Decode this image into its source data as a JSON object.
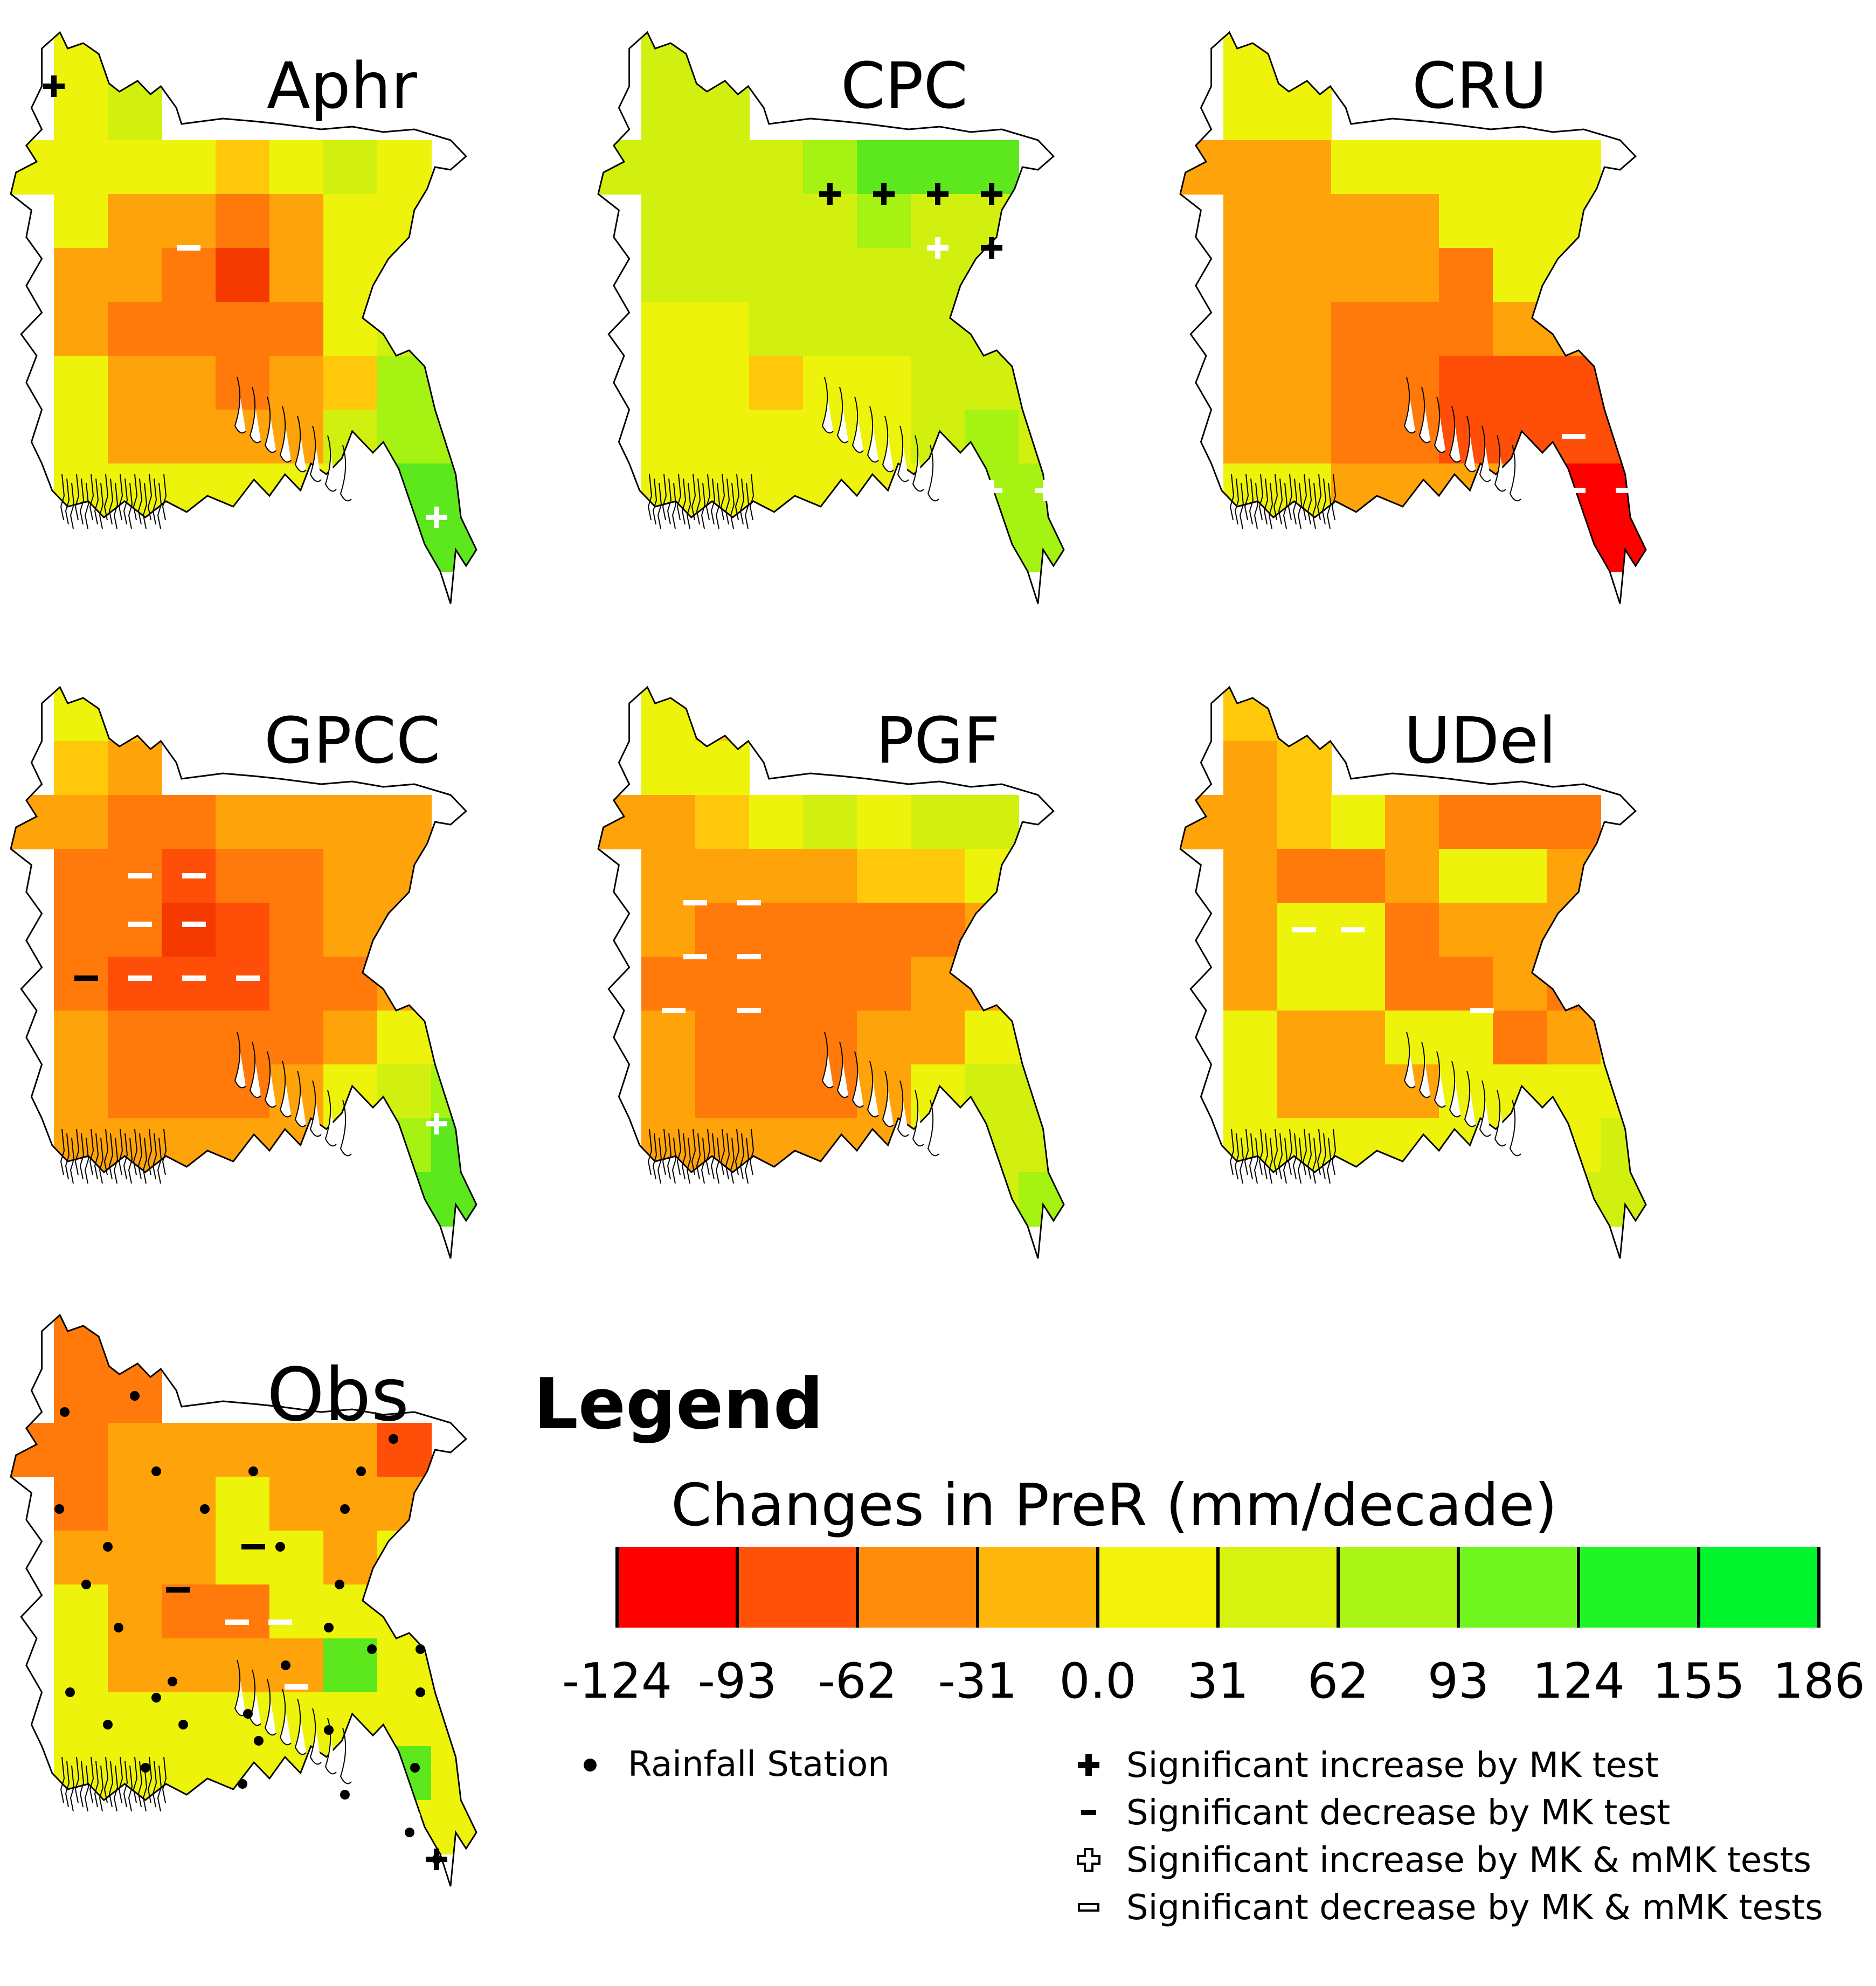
{
  "panels": [
    {
      "title": "Aphr",
      "grid": [
        [
          null,
          "y",
          "yg",
          null,
          null,
          null,
          null,
          null,
          null
        ],
        [
          null,
          "y",
          "yg",
          null,
          null,
          null,
          null,
          null,
          null
        ],
        [
          "y",
          "y",
          "y",
          "y",
          "yo",
          "y",
          "yg",
          "y",
          null
        ],
        [
          null,
          "y",
          "o",
          "o",
          "or",
          "o",
          "y",
          "y",
          null
        ],
        [
          null,
          "o",
          "o",
          "or",
          "r3",
          "o",
          "y",
          "y",
          null
        ],
        [
          null,
          "o",
          "or",
          "or",
          "or",
          "or",
          "y",
          "yg",
          "y"
        ],
        [
          null,
          "y",
          "o",
          "o",
          "or",
          "o",
          "yo",
          "lg",
          "lg"
        ],
        [
          null,
          "y",
          "o",
          "o",
          "o",
          "o",
          "yg",
          "lg",
          "lg"
        ],
        [
          null,
          "y",
          "y",
          "y",
          "y",
          "y",
          "y",
          "g",
          "g"
        ],
        [
          null,
          null,
          null,
          null,
          null,
          null,
          null,
          "g",
          "g"
        ]
      ],
      "markers": [
        [
          "+k",
          1,
          1
        ],
        [
          "-w",
          3.5,
          4
        ],
        [
          "+w",
          7.2,
          9
        ],
        [
          "+w",
          8.1,
          9
        ]
      ]
    },
    {
      "title": "CPC",
      "grid": [
        [
          null,
          "yg",
          "yg",
          null,
          null,
          null,
          null,
          null,
          null
        ],
        [
          null,
          "yg",
          "yg",
          null,
          null,
          null,
          null,
          null,
          null
        ],
        [
          "yg",
          "yg",
          "yg",
          "yg",
          "lg",
          "g",
          "g",
          "g",
          null
        ],
        [
          null,
          "yg",
          "yg",
          "yg",
          "yg",
          "lg",
          "yg",
          "yg",
          null
        ],
        [
          null,
          "yg",
          "yg",
          "yg",
          "yg",
          "yg",
          "yg",
          "yg",
          null
        ],
        [
          null,
          "y",
          "y",
          "yg",
          "yg",
          "yg",
          "yg",
          "yg",
          "yg"
        ],
        [
          null,
          "y",
          "y",
          "yo",
          "y",
          "y",
          "yg",
          "yg",
          "yg"
        ],
        [
          null,
          "y",
          "y",
          "y",
          "y",
          "y",
          "yg",
          "lg",
          "yg"
        ],
        [
          null,
          "y",
          "y",
          "y",
          "y",
          "y",
          "y",
          "lg",
          "lg"
        ],
        [
          null,
          null,
          null,
          null,
          null,
          null,
          null,
          "lg",
          "lg"
        ]
      ],
      "markers": [
        [
          "+k",
          4.5,
          3
        ],
        [
          "+k",
          5.5,
          3
        ],
        [
          "+k",
          6.5,
          3
        ],
        [
          "+k",
          7.5,
          3
        ],
        [
          "+w",
          6.5,
          4
        ],
        [
          "+k",
          7.5,
          4
        ],
        [
          "+w",
          7.5,
          8.5
        ],
        [
          "+w",
          8.5,
          8.5
        ]
      ]
    },
    {
      "title": "CRU",
      "grid": [
        [
          null,
          "y",
          "y",
          null,
          null,
          null,
          null,
          null,
          null
        ],
        [
          null,
          "y",
          "y",
          null,
          null,
          null,
          null,
          null,
          null
        ],
        [
          "o",
          "o",
          "o",
          "y",
          "y",
          "y",
          "y",
          "y",
          null
        ],
        [
          null,
          "o",
          "o",
          "o",
          "o",
          "y",
          "y",
          "y",
          null
        ],
        [
          null,
          "o",
          "o",
          "o",
          "o",
          "or",
          "y",
          "y",
          null
        ],
        [
          null,
          "o",
          "o",
          "or",
          "or",
          "or",
          "o",
          "o",
          "or"
        ],
        [
          null,
          "o",
          "o",
          "or",
          "or",
          "rr",
          "rr",
          "rr",
          "rr"
        ],
        [
          null,
          "o",
          "o",
          "or",
          "or",
          "rr",
          "rr",
          "rr",
          "rr"
        ],
        [
          null,
          "y",
          "y",
          "o",
          "o",
          "o",
          "o",
          "r",
          "r"
        ],
        [
          null,
          null,
          null,
          null,
          null,
          null,
          null,
          "r",
          "r"
        ]
      ],
      "markers": [
        [
          "-w",
          7.5,
          7.5
        ],
        [
          "-w",
          8.5,
          7.5
        ],
        [
          "-w",
          7.5,
          8.5
        ],
        [
          "-w",
          8.5,
          8.5
        ]
      ]
    },
    {
      "title": "GPCC",
      "grid": [
        [
          null,
          "y",
          "yo",
          null,
          null,
          null,
          null,
          null,
          null
        ],
        [
          null,
          "yo",
          "o",
          null,
          null,
          null,
          null,
          null,
          null
        ],
        [
          "o",
          "o",
          "or",
          "or",
          "o",
          "o",
          "o",
          "o",
          null
        ],
        [
          null,
          "or",
          "or",
          "rr",
          "or",
          "or",
          "o",
          "o",
          null
        ],
        [
          null,
          "or",
          "or",
          "r3",
          "rr",
          "or",
          "o",
          "o",
          null
        ],
        [
          null,
          "or",
          "rr",
          "rr",
          "rr",
          "or",
          "or",
          "o",
          "y"
        ],
        [
          null,
          "o",
          "or",
          "or",
          "or",
          "or",
          "o",
          "y",
          "y"
        ],
        [
          null,
          "o",
          "or",
          "or",
          "or",
          "o",
          "y",
          "yg",
          "lg"
        ],
        [
          null,
          "o",
          "o",
          "o",
          "o",
          "o",
          "y",
          "lg",
          "g"
        ],
        [
          null,
          null,
          null,
          null,
          null,
          null,
          null,
          "g",
          "g"
        ]
      ],
      "markers": [
        [
          "-w",
          2.6,
          3.5
        ],
        [
          "-w",
          3.6,
          3.5
        ],
        [
          "-w",
          2.6,
          4.4
        ],
        [
          "-w",
          3.6,
          4.4
        ],
        [
          "-k",
          1.6,
          5.4
        ],
        [
          "-w",
          2.6,
          5.4
        ],
        [
          "-w",
          3.6,
          5.4
        ],
        [
          "-w",
          4.6,
          5.4
        ],
        [
          "+w",
          8.1,
          8.1
        ]
      ]
    },
    {
      "title": "PGF",
      "grid": [
        [
          null,
          "y",
          "yo",
          null,
          null,
          null,
          null,
          null,
          null
        ],
        [
          null,
          "y",
          "y",
          null,
          null,
          null,
          null,
          null,
          null
        ],
        [
          "o",
          "o",
          "yo",
          "y",
          "yg",
          "y",
          "yg",
          "yg",
          null
        ],
        [
          null,
          "o",
          "o",
          "o",
          "o",
          "yo",
          "yo",
          "y",
          null
        ],
        [
          null,
          "o",
          "or",
          "or",
          "or",
          "or",
          "or",
          "o",
          null
        ],
        [
          null,
          "or",
          "or",
          "or",
          "or",
          "or",
          "o",
          "o",
          "y"
        ],
        [
          null,
          "o",
          "or",
          "or",
          "or",
          "o",
          "o",
          "y",
          "y"
        ],
        [
          null,
          "o",
          "or",
          "or",
          "or",
          "o",
          "y",
          "yg",
          "yg"
        ],
        [
          null,
          "o",
          "o",
          "o",
          "o",
          "o",
          "y",
          "yg",
          "yg"
        ],
        [
          null,
          null,
          null,
          null,
          null,
          null,
          null,
          "yg",
          "lg"
        ]
      ],
      "markers": [
        [
          "-w",
          2,
          4
        ],
        [
          "-w",
          3,
          4
        ],
        [
          "-w",
          2,
          5
        ],
        [
          "-w",
          3,
          5
        ],
        [
          "-w",
          1.6,
          6
        ],
        [
          "-w",
          3,
          6
        ]
      ]
    },
    {
      "title": "UDel",
      "grid": [
        [
          null,
          "yo",
          "yo",
          null,
          null,
          null,
          null,
          null,
          null
        ],
        [
          null,
          "o",
          "yo",
          null,
          null,
          null,
          null,
          null,
          null
        ],
        [
          "o",
          "o",
          "yo",
          "y",
          "o",
          "or",
          "or",
          "or",
          null
        ],
        [
          null,
          "o",
          "or",
          "or",
          "o",
          "y",
          "y",
          "o",
          null
        ],
        [
          null,
          "o",
          "y",
          "y",
          "or",
          "o",
          "o",
          "o",
          null
        ],
        [
          null,
          "o",
          "y",
          "y",
          "or",
          "or",
          "o",
          "or",
          "y"
        ],
        [
          null,
          "y",
          "o",
          "o",
          "y",
          "y",
          "or",
          "o",
          "y"
        ],
        [
          null,
          "y",
          "o",
          "o",
          "o",
          "y",
          "y",
          "y",
          "y"
        ],
        [
          null,
          "y",
          "y",
          "y",
          "y",
          "y",
          "y",
          "y",
          "yg"
        ],
        [
          null,
          null,
          null,
          null,
          null,
          null,
          null,
          "yg",
          "yg"
        ]
      ],
      "markers": [
        [
          "-w",
          2.5,
          4.5
        ],
        [
          "-w",
          3.4,
          4.5
        ],
        [
          "-w",
          5.8,
          6
        ]
      ]
    },
    {
      "title": "Obs",
      "grid": [
        [
          null,
          "or",
          "or",
          null,
          null,
          null,
          null,
          null,
          null
        ],
        [
          null,
          "or",
          "or",
          null,
          null,
          null,
          null,
          null,
          null
        ],
        [
          "or",
          "or",
          "o",
          "o",
          "o",
          "o",
          "o",
          "rr",
          null
        ],
        [
          null,
          "or",
          "o",
          "o",
          "y",
          "o",
          "o",
          "o",
          null
        ],
        [
          null,
          "o",
          "o",
          "o",
          "y",
          "y",
          "o",
          "y",
          null
        ],
        [
          null,
          "y",
          "o",
          "or",
          "or",
          "y",
          "y",
          "y",
          "y"
        ],
        [
          null,
          "y",
          "o",
          "o",
          "o",
          "o",
          "g",
          "y",
          "y"
        ],
        [
          null,
          "y",
          "y",
          "y",
          "y",
          "y",
          "y",
          "y",
          "y"
        ],
        [
          null,
          "y",
          "y",
          "y",
          "y",
          "y",
          "y",
          "g",
          "y"
        ],
        [
          null,
          null,
          null,
          null,
          null,
          null,
          null,
          "y",
          "y"
        ]
      ],
      "markers": [
        [
          "-k",
          4.7,
          4.3
        ],
        [
          "-k",
          3.3,
          5.1
        ],
        [
          "-w",
          4.4,
          5.7
        ],
        [
          "-w",
          5.2,
          5.7
        ],
        [
          "-w",
          5.5,
          6.9
        ],
        [
          "+w",
          7.6,
          9.3
        ],
        [
          "+k",
          8.1,
          10.1
        ]
      ],
      "stations": [
        [
          1.2,
          1.8
        ],
        [
          2.5,
          1.5
        ],
        [
          2.9,
          2.9
        ],
        [
          4.7,
          2.9
        ],
        [
          6.7,
          2.9
        ],
        [
          7.3,
          2.3
        ],
        [
          1.1,
          3.6
        ],
        [
          3.8,
          3.6
        ],
        [
          6.4,
          3.6
        ],
        [
          2,
          4.3
        ],
        [
          5.2,
          4.3
        ],
        [
          1.6,
          5
        ],
        [
          6.3,
          5
        ],
        [
          5.3,
          6.5
        ],
        [
          2.2,
          5.8
        ],
        [
          6.1,
          5.8
        ],
        [
          3.2,
          6.8
        ],
        [
          6.9,
          6.2
        ],
        [
          7.8,
          6.2
        ],
        [
          7.8,
          7
        ],
        [
          1.3,
          7
        ],
        [
          2.9,
          7.1
        ],
        [
          4.6,
          7.4
        ],
        [
          6.1,
          7.7
        ],
        [
          2,
          7.6
        ],
        [
          3.4,
          7.6
        ],
        [
          4.8,
          7.9
        ],
        [
          2.7,
          8.4
        ],
        [
          7.7,
          8.4
        ],
        [
          4.5,
          8.7
        ],
        [
          6.4,
          8.9
        ],
        [
          7.6,
          9.6
        ],
        [
          8.1,
          10.1
        ]
      ]
    }
  ],
  "legend": {
    "title": "Legend",
    "scale_title": "Changes in PreR (mm/decade)",
    "ticks": [
      "-124",
      "-93",
      "-62",
      "-31",
      "0.0",
      "31",
      "62",
      "93",
      "124",
      "155",
      "186"
    ],
    "colors": [
      "#ff0000",
      "#ff5208",
      "#ff8c0a",
      "#ffb60b",
      "#f3f20b",
      "#d6f30f",
      "#a9f515",
      "#6ef51e",
      "#1ff526",
      "#00f52c"
    ],
    "station_label": "Rainfall Station",
    "symbols": [
      {
        "glyph": "+k",
        "label": "Significant increase by MK test"
      },
      {
        "glyph": "-k",
        "label": "Significant decrease by MK test"
      },
      {
        "glyph": "+o",
        "label": "Significant increase by MK & mMK tests"
      },
      {
        "glyph": "-o",
        "label": "Significant decrease by MK & mMK tests"
      }
    ]
  },
  "class_colors": {
    "r": "#ff0000",
    "r3": "#f53a00",
    "rr": "#ff4e08",
    "or": "#ff7a0a",
    "o": "#ffa30a",
    "yo": "#ffc80b",
    "y": "#eef30b",
    "yg": "#d2f010",
    "lg": "#a6f212",
    "g": "#5ce81c"
  }
}
